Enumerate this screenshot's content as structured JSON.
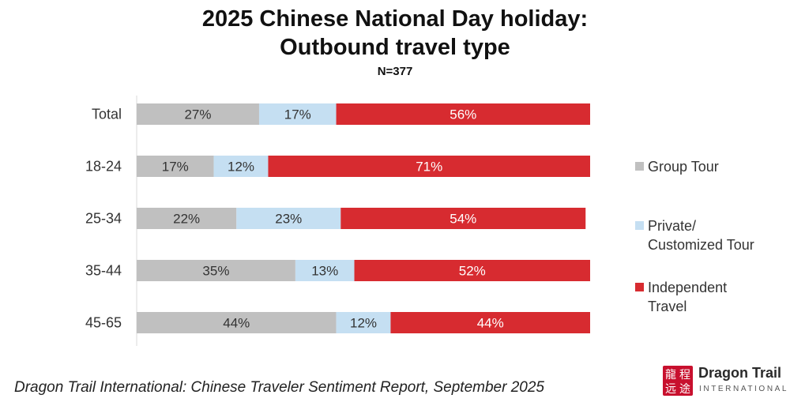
{
  "header": {
    "title_line1": "2025 Chinese National Day holiday:",
    "title_line2": "Outbound travel type",
    "subtitle": "N=377"
  },
  "footer": {
    "source": "Dragon Trail International: Chinese Traveler Sentiment Report, September 2025",
    "logo_name": "Dragon Trail",
    "logo_sub": "INTERNATIONAL",
    "logo_glyphs": [
      "龍",
      "程",
      "远",
      "途"
    ]
  },
  "chart_data": {
    "type": "bar",
    "orientation": "horizontal",
    "stacked": true,
    "percent_stacked": true,
    "title": "2025 Chinese National Day holiday: Outbound travel type",
    "subtitle": "N=377",
    "categories": [
      "Total",
      "18-24",
      "25-34",
      "35-44",
      "45-65"
    ],
    "series": [
      {
        "name": "Group Tour",
        "values": [
          27,
          17,
          22,
          35,
          44
        ],
        "color": "#c0c0c0",
        "label_color": "#333333"
      },
      {
        "name": "Private/ Customized Tour",
        "legend_lines": [
          "Private/",
          "Customized Tour"
        ],
        "values": [
          17,
          12,
          23,
          13,
          12
        ],
        "color": "#c5dff2",
        "label_color": "#333333"
      },
      {
        "name": "Independent Travel",
        "legend_lines": [
          "Independent",
          "Travel"
        ],
        "values": [
          56,
          71,
          54,
          52,
          44
        ],
        "color": "#d72b30",
        "label_color": "#ffffff"
      }
    ],
    "value_suffix": "%",
    "xlim": [
      0,
      100
    ],
    "grid": false,
    "legend_position": "right"
  }
}
